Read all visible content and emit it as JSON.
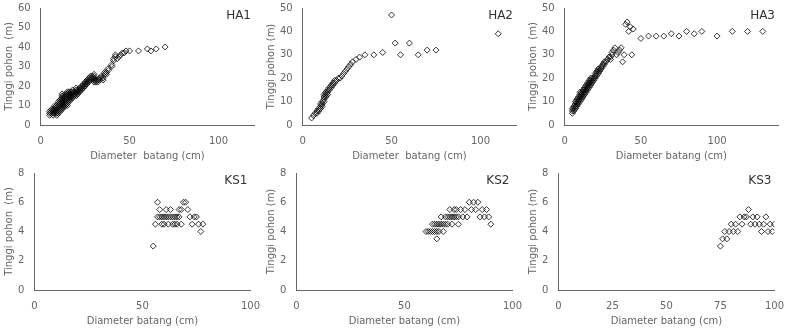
{
  "chart_data": [
    {
      "type": "scatter",
      "title": "HA1",
      "xlabel": "Diameter  batang (cm)",
      "ylabel": "Tinggi pohon  (m)",
      "xlim": [
        0,
        120
      ],
      "ylim": [
        0,
        60
      ],
      "xticks": [
        0,
        50,
        100
      ],
      "yticks": [
        0,
        10,
        20,
        30,
        40,
        50,
        60
      ],
      "grid": false,
      "marker": "diamond",
      "color": "#000000",
      "x": [
        5,
        5,
        5,
        6,
        6,
        6,
        7,
        7,
        7,
        7,
        8,
        8,
        8,
        8,
        8,
        9,
        9,
        9,
        9,
        9,
        9,
        10,
        10,
        10,
        10,
        10,
        10,
        10,
        11,
        11,
        11,
        11,
        11,
        11,
        11,
        12,
        12,
        12,
        12,
        12,
        12,
        12,
        12,
        12,
        13,
        13,
        13,
        13,
        13,
        13,
        13,
        14,
        14,
        14,
        14,
        14,
        14,
        14,
        15,
        15,
        15,
        15,
        15,
        15,
        15,
        15,
        16,
        16,
        16,
        16,
        16,
        16,
        17,
        17,
        17,
        17,
        17,
        18,
        18,
        18,
        18,
        18,
        19,
        19,
        19,
        20,
        20,
        20,
        20,
        20,
        21,
        21,
        21,
        22,
        22,
        22,
        23,
        23,
        23,
        24,
        24,
        24,
        25,
        25,
        25,
        26,
        26,
        26,
        27,
        27,
        27,
        28,
        28,
        28,
        29,
        29,
        30,
        30,
        30,
        30,
        30,
        31,
        31,
        32,
        32,
        33,
        33,
        34,
        34,
        35,
        35,
        36,
        36,
        37,
        37,
        38,
        38,
        40,
        40,
        41,
        41,
        42,
        42,
        43,
        44,
        45,
        46,
        47,
        48,
        50,
        55,
        60,
        62,
        65,
        70
      ],
      "y": [
        5,
        6,
        7,
        6,
        7,
        8,
        5,
        6,
        7,
        8,
        6,
        7,
        8,
        9,
        10,
        5,
        6,
        7,
        8,
        9,
        10,
        6,
        7,
        8,
        9,
        10,
        11,
        12,
        7,
        8,
        9,
        10,
        11,
        12,
        13,
        8,
        9,
        10,
        11,
        12,
        13,
        14,
        15,
        16,
        9,
        10,
        11,
        12,
        13,
        14,
        15,
        10,
        11,
        12,
        13,
        14,
        15,
        16,
        10,
        11,
        12,
        13,
        14,
        15,
        16,
        17,
        12,
        13,
        14,
        15,
        16,
        17,
        13,
        14,
        15,
        16,
        17,
        14,
        15,
        16,
        17,
        18,
        15,
        16,
        17,
        15,
        16,
        17,
        18,
        19,
        16,
        17,
        18,
        17,
        18,
        19,
        18,
        19,
        20,
        19,
        20,
        21,
        20,
        21,
        22,
        21,
        22,
        23,
        22,
        23,
        24,
        23,
        24,
        25,
        24,
        25,
        22,
        23,
        24,
        25,
        26,
        22,
        23,
        22,
        23,
        23,
        24,
        24,
        25,
        23,
        24,
        26,
        27,
        26,
        27,
        28,
        29,
        30,
        31,
        33,
        34,
        35,
        36,
        34,
        35,
        36,
        37,
        37,
        38,
        38,
        38,
        39,
        38,
        39,
        40
      ]
    },
    {
      "type": "scatter",
      "title": "HA2",
      "xlabel": "Diameter  batang (cm)",
      "ylabel": "Tinggi pohon (m)",
      "xlim": [
        0,
        120
      ],
      "ylim": [
        0,
        50
      ],
      "xticks": [
        0,
        50,
        100
      ],
      "yticks": [
        0,
        10,
        20,
        30,
        40,
        50
      ],
      "grid": false,
      "marker": "diamond",
      "color": "#000000",
      "x": [
        5,
        6,
        7,
        8,
        8,
        9,
        9,
        10,
        10,
        10,
        11,
        11,
        11,
        12,
        12,
        12,
        12,
        13,
        13,
        13,
        14,
        14,
        14,
        15,
        15,
        16,
        16,
        17,
        17,
        18,
        18,
        19,
        20,
        21,
        22,
        23,
        24,
        25,
        26,
        27,
        28,
        30,
        32,
        35,
        40,
        45,
        50,
        52,
        55,
        60,
        65,
        70,
        75,
        110
      ],
      "y": [
        3,
        4,
        5,
        5,
        6,
        6,
        7,
        7,
        8,
        9,
        8,
        9,
        10,
        10,
        11,
        12,
        13,
        12,
        13,
        14,
        13,
        14,
        15,
        15,
        16,
        16,
        17,
        17,
        18,
        18,
        19,
        19,
        20,
        20,
        21,
        22,
        23,
        24,
        25,
        26,
        27,
        28,
        29,
        30,
        30,
        31,
        47,
        35,
        30,
        35,
        30,
        32,
        32,
        39
      ]
    },
    {
      "type": "scatter",
      "title": "HA3",
      "xlabel": "Diameter batang (cm)",
      "ylabel": "Tinggi pohon  (m)",
      "xlim": [
        0,
        140
      ],
      "ylim": [
        0,
        50
      ],
      "xticks": [
        0,
        50,
        100
      ],
      "yticks": [
        0,
        10,
        20,
        30,
        40,
        50
      ],
      "grid": false,
      "marker": "diamond",
      "color": "#000000",
      "x": [
        5,
        5,
        5,
        6,
        6,
        6,
        7,
        7,
        7,
        7,
        8,
        8,
        8,
        8,
        9,
        9,
        9,
        9,
        10,
        10,
        10,
        10,
        10,
        11,
        11,
        11,
        11,
        12,
        12,
        12,
        12,
        13,
        13,
        13,
        13,
        14,
        14,
        14,
        14,
        15,
        15,
        15,
        15,
        16,
        16,
        16,
        16,
        17,
        17,
        17,
        17,
        18,
        18,
        18,
        19,
        19,
        20,
        20,
        20,
        21,
        21,
        21,
        22,
        22,
        22,
        23,
        23,
        24,
        24,
        25,
        25,
        26,
        26,
        27,
        28,
        29,
        30,
        30,
        31,
        31,
        32,
        33,
        34,
        35,
        36,
        37,
        38,
        39,
        40,
        41,
        42,
        43,
        44,
        45,
        50,
        55,
        60,
        65,
        70,
        75,
        80,
        85,
        90,
        100,
        110,
        120,
        130
      ],
      "y": [
        5,
        6,
        7,
        6,
        7,
        8,
        7,
        8,
        9,
        10,
        8,
        9,
        10,
        11,
        9,
        10,
        11,
        12,
        10,
        11,
        12,
        13,
        14,
        11,
        12,
        13,
        14,
        12,
        13,
        14,
        15,
        13,
        14,
        15,
        16,
        14,
        15,
        16,
        17,
        15,
        16,
        17,
        18,
        16,
        17,
        18,
        19,
        17,
        18,
        19,
        20,
        18,
        19,
        20,
        19,
        20,
        20,
        21,
        22,
        21,
        22,
        23,
        22,
        23,
        24,
        23,
        24,
        24,
        25,
        25,
        26,
        26,
        27,
        27,
        28,
        29,
        28,
        29,
        30,
        31,
        32,
        33,
        30,
        31,
        32,
        33,
        27,
        30,
        43,
        44,
        40,
        42,
        30,
        41,
        37,
        38,
        38,
        38,
        39,
        38,
        40,
        39,
        40,
        38,
        40,
        40,
        40
      ]
    },
    {
      "type": "scatter",
      "title": "KS1",
      "xlabel": "Diameter batang (cm)",
      "ylabel": "Tinggi pohon  (m)",
      "xlim": [
        0,
        100
      ],
      "ylim": [
        0,
        8
      ],
      "xticks": [
        0,
        50,
        100
      ],
      "yticks": [
        0,
        2,
        4,
        6,
        8
      ],
      "grid": false,
      "marker": "diamond",
      "color": "#000000",
      "x": [
        55,
        56,
        57,
        57,
        58,
        58,
        59,
        59,
        60,
        60,
        61,
        61,
        62,
        62,
        63,
        63,
        64,
        64,
        65,
        65,
        66,
        66,
        67,
        67,
        68,
        68,
        69,
        70,
        71,
        72,
        73,
        74,
        75,
        76,
        77,
        78
      ],
      "y": [
        3,
        4.5,
        5,
        6,
        5,
        5.5,
        4.5,
        5,
        4.5,
        5,
        5,
        5.5,
        4.5,
        5,
        5,
        5.5,
        4.5,
        5,
        4.5,
        5,
        4.5,
        5,
        5,
        5.5,
        4.5,
        5.5,
        6,
        6,
        5.5,
        5,
        4.5,
        5,
        5,
        4.5,
        4,
        4.5
      ]
    },
    {
      "type": "scatter",
      "title": "KS2",
      "xlabel": "Diameter batang (cm)",
      "ylabel": "Tinggi pohon (m)",
      "xlim": [
        0,
        100
      ],
      "ylim": [
        0,
        8
      ],
      "xticks": [
        0,
        50,
        100
      ],
      "yticks": [
        0,
        2,
        4,
        6,
        8
      ],
      "grid": false,
      "marker": "diamond",
      "color": "#000000",
      "x": [
        60,
        61,
        62,
        63,
        63,
        64,
        64,
        65,
        65,
        65,
        66,
        66,
        67,
        67,
        68,
        68,
        69,
        69,
        70,
        70,
        71,
        71,
        72,
        72,
        73,
        73,
        74,
        74,
        75,
        75,
        76,
        77,
        78,
        79,
        80,
        81,
        82,
        83,
        84,
        85,
        86,
        87,
        88,
        89,
        90
      ],
      "y": [
        4,
        4,
        4,
        4,
        4.5,
        4,
        4.5,
        3.5,
        4,
        4.5,
        4,
        4.5,
        4.5,
        5,
        4,
        4.5,
        4.5,
        5,
        4.5,
        5,
        5,
        5.5,
        4.5,
        5,
        5,
        5.5,
        5,
        5.5,
        4.5,
        5,
        5.5,
        5,
        5.5,
        5,
        6,
        5.5,
        6,
        5.5,
        6,
        5,
        5.5,
        5,
        5.5,
        5,
        4.5
      ]
    },
    {
      "type": "scatter",
      "title": "KS3",
      "xlabel": "Diameter batang (cm)",
      "ylabel": "Tinggi pohon (m)",
      "xlim": [
        0,
        100
      ],
      "ylim": [
        0,
        8
      ],
      "xticks": [
        0,
        25,
        50,
        75,
        100
      ],
      "yticks": [
        0,
        2,
        4,
        6,
        8
      ],
      "grid": false,
      "marker": "diamond",
      "color": "#000000",
      "x": [
        75,
        76,
        77,
        78,
        79,
        80,
        81,
        82,
        83,
        84,
        85,
        86,
        87,
        88,
        89,
        90,
        91,
        92,
        93,
        94,
        95,
        96,
        97,
        98,
        99,
        100
      ],
      "y": [
        3,
        3.5,
        4,
        3.5,
        4,
        4.5,
        4,
        4.5,
        4,
        5,
        4.5,
        5,
        5,
        5.5,
        4.5,
        5,
        4.5,
        5,
        4.5,
        4,
        4.5,
        5,
        4,
        4.5,
        4,
        4.5
      ]
    }
  ]
}
